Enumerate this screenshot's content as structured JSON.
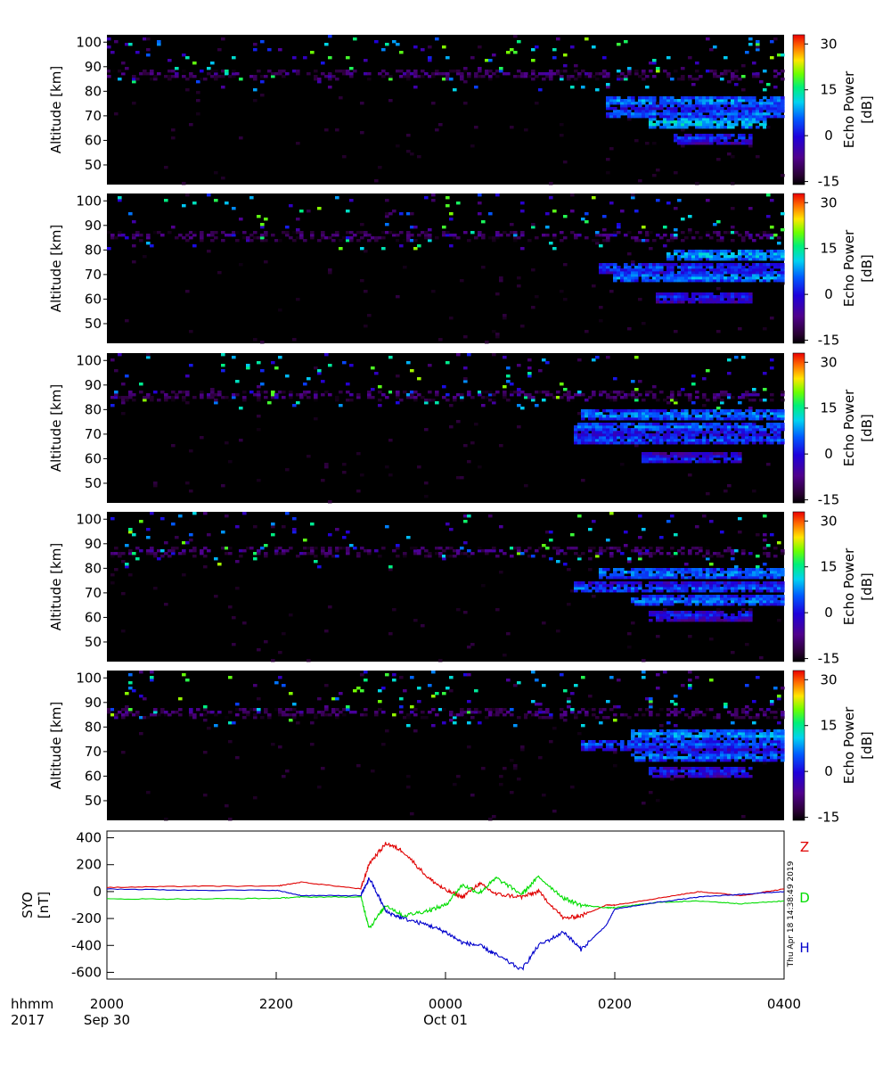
{
  "chart_data": [
    {
      "type": "heatmap",
      "panel": 1,
      "ylabel": "Altitude [km]",
      "yticks": [
        50,
        60,
        70,
        80,
        90,
        100
      ],
      "ylim": [
        42,
        103
      ],
      "colorbar": {
        "label": "Echo Power",
        "unit": "[dB]",
        "ticks": [
          "30",
          "15",
          "0",
          "-15"
        ],
        "range": [
          -16,
          33
        ]
      },
      "echo_layers": [
        {
          "alt_km": 87,
          "t_start_h": 20.0,
          "t_end_h": 28.0,
          "power_db": -8
        },
        {
          "alt_km": 76,
          "t_start_h": 25.9,
          "t_end_h": 28.0,
          "power_db": 8
        },
        {
          "alt_km": 71,
          "t_start_h": 25.9,
          "t_end_h": 28.0,
          "power_db": 6
        },
        {
          "alt_km": 67,
          "t_start_h": 26.4,
          "t_end_h": 27.8,
          "power_db": 12
        },
        {
          "alt_km": 61,
          "t_start_h": 26.7,
          "t_end_h": 27.6,
          "power_db": 3
        }
      ]
    },
    {
      "type": "heatmap",
      "panel": 2,
      "ylabel": "Altitude [km]",
      "yticks": [
        50,
        60,
        70,
        80,
        90,
        100
      ],
      "ylim": [
        42,
        103
      ],
      "colorbar": {
        "label": "Echo Power",
        "unit": "[dB]",
        "ticks": [
          "30",
          "15",
          "0",
          "-15"
        ],
        "range": [
          -16,
          33
        ]
      },
      "echo_layers": [
        {
          "alt_km": 86,
          "t_start_h": 20.0,
          "t_end_h": 28.0,
          "power_db": -8
        },
        {
          "alt_km": 78,
          "t_start_h": 26.6,
          "t_end_h": 28.0,
          "power_db": 10
        },
        {
          "alt_km": 73,
          "t_start_h": 25.8,
          "t_end_h": 28.0,
          "power_db": 4
        },
        {
          "alt_km": 69,
          "t_start_h": 26.0,
          "t_end_h": 28.0,
          "power_db": 8
        },
        {
          "alt_km": 61,
          "t_start_h": 26.5,
          "t_end_h": 27.6,
          "power_db": 2
        }
      ]
    },
    {
      "type": "heatmap",
      "panel": 3,
      "ylabel": "Altitude [km]",
      "yticks": [
        50,
        60,
        70,
        80,
        90,
        100
      ],
      "ylim": [
        42,
        103
      ],
      "colorbar": {
        "label": "Echo Power",
        "unit": "[dB]",
        "ticks": [
          "30",
          "15",
          "0",
          "-15"
        ],
        "range": [
          -16,
          33
        ]
      },
      "echo_layers": [
        {
          "alt_km": 86,
          "t_start_h": 20.0,
          "t_end_h": 28.0,
          "power_db": -8
        },
        {
          "alt_km": 78,
          "t_start_h": 25.6,
          "t_end_h": 28.0,
          "power_db": 8
        },
        {
          "alt_km": 73,
          "t_start_h": 25.5,
          "t_end_h": 28.0,
          "power_db": 6
        },
        {
          "alt_km": 68,
          "t_start_h": 25.5,
          "t_end_h": 28.0,
          "power_db": 5
        },
        {
          "alt_km": 60,
          "t_start_h": 26.3,
          "t_end_h": 27.5,
          "power_db": 2
        }
      ]
    },
    {
      "type": "heatmap",
      "panel": 4,
      "ylabel": "Altitude [km]",
      "yticks": [
        50,
        60,
        70,
        80,
        90,
        100
      ],
      "ylim": [
        42,
        103
      ],
      "colorbar": {
        "label": "Echo Power",
        "unit": "[dB]",
        "ticks": [
          "30",
          "15",
          "0",
          "-15"
        ],
        "range": [
          -16,
          33
        ]
      },
      "echo_layers": [
        {
          "alt_km": 87,
          "t_start_h": 20.0,
          "t_end_h": 28.0,
          "power_db": -8
        },
        {
          "alt_km": 78,
          "t_start_h": 25.8,
          "t_end_h": 28.0,
          "power_db": 8
        },
        {
          "alt_km": 72,
          "t_start_h": 25.5,
          "t_end_h": 28.0,
          "power_db": 5
        },
        {
          "alt_km": 67,
          "t_start_h": 26.2,
          "t_end_h": 28.0,
          "power_db": 7
        },
        {
          "alt_km": 61,
          "t_start_h": 26.4,
          "t_end_h": 27.6,
          "power_db": 2
        }
      ]
    },
    {
      "type": "heatmap",
      "panel": 5,
      "ylabel": "Altitude [km]",
      "yticks": [
        50,
        60,
        70,
        80,
        90,
        100
      ],
      "ylim": [
        42,
        103
      ],
      "colorbar": {
        "label": "Echo Power",
        "unit": "[dB]",
        "ticks": [
          "30",
          "15",
          "0",
          "-15"
        ],
        "range": [
          -16,
          33
        ]
      },
      "echo_layers": [
        {
          "alt_km": 86,
          "t_start_h": 20.0,
          "t_end_h": 28.0,
          "power_db": -8
        },
        {
          "alt_km": 77,
          "t_start_h": 26.2,
          "t_end_h": 28.0,
          "power_db": 9
        },
        {
          "alt_km": 73,
          "t_start_h": 25.6,
          "t_end_h": 28.0,
          "power_db": 5
        },
        {
          "alt_km": 68,
          "t_start_h": 26.2,
          "t_end_h": 28.0,
          "power_db": 7
        },
        {
          "alt_km": 62,
          "t_start_h": 26.4,
          "t_end_h": 27.6,
          "power_db": 2
        }
      ]
    },
    {
      "type": "line",
      "panel": 6,
      "ylabel": "SYO",
      "yunit": "[nT]",
      "ylim": [
        -650,
        450
      ],
      "yticks": [
        400,
        200,
        0,
        -200,
        -400,
        -600
      ],
      "x_hours": [
        20.0,
        21.0,
        22.0,
        22.3,
        23.0,
        23.1,
        23.3,
        23.5,
        23.8,
        24.0,
        24.2,
        24.4,
        24.6,
        24.9,
        25.1,
        25.4,
        25.6,
        25.9,
        26.0,
        26.5,
        27.0,
        27.5,
        28.0
      ],
      "series": [
        {
          "name": "Z",
          "color": "#e00000",
          "values": [
            30,
            40,
            40,
            70,
            20,
            210,
            360,
            300,
            100,
            10,
            -40,
            60,
            -20,
            -40,
            0,
            -200,
            -180,
            -100,
            -100,
            -50,
            0,
            -30,
            20
          ]
        },
        {
          "name": "D",
          "color": "#00dd00",
          "values": [
            -55,
            -55,
            -50,
            -40,
            -40,
            -270,
            -100,
            -180,
            -140,
            -100,
            50,
            -10,
            100,
            -20,
            110,
            -50,
            -100,
            -120,
            -120,
            -80,
            -70,
            -90,
            -70
          ]
        },
        {
          "name": "H",
          "color": "#0000cc",
          "values": [
            20,
            10,
            10,
            -30,
            -30,
            100,
            -150,
            -200,
            -250,
            -300,
            -380,
            -400,
            -470,
            -580,
            -400,
            -300,
            -430,
            -250,
            -130,
            -80,
            -40,
            -20,
            0
          ]
        }
      ],
      "timestamp": "Thu Apr 18 14:38:49 2019"
    }
  ],
  "time_axis": {
    "format_label": "hhmm",
    "year_label": "2017",
    "xlim_hours": [
      20,
      28
    ],
    "ticks": [
      {
        "h": 20,
        "label": "2000",
        "date": "Sep 30"
      },
      {
        "h": 22,
        "label": "2200",
        "date": ""
      },
      {
        "h": 24,
        "label": "0000",
        "date": "Oct 01"
      },
      {
        "h": 26,
        "label": "0200",
        "date": ""
      },
      {
        "h": 28,
        "label": "0400",
        "date": ""
      }
    ]
  }
}
